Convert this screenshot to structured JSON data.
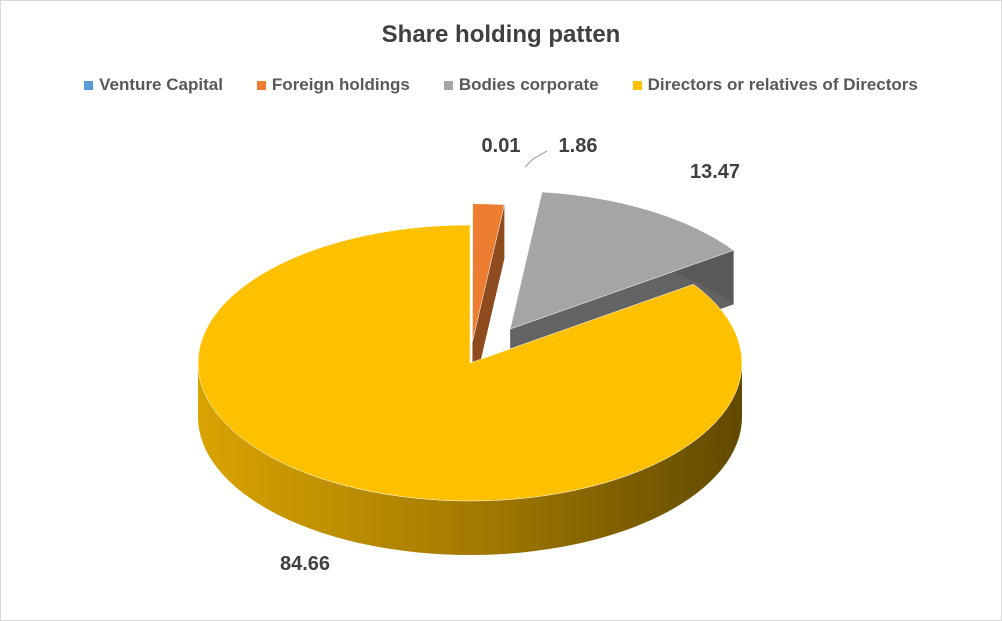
{
  "chart_data": {
    "type": "pie",
    "title": "Share holding patten",
    "categories": [
      "Venture Capital",
      "Foreign holdings",
      "Bodies corporate",
      "Directors or relatives of Directors"
    ],
    "values": [
      0.01,
      1.86,
      13.47,
      84.66
    ],
    "value_labels": [
      "0.01",
      "1.86",
      "13.47",
      "84.66"
    ],
    "colors": [
      "#5b9bd5",
      "#ed7d31",
      "#a5a5a5",
      "#ffc000"
    ],
    "style": "3d-exploded",
    "legend_position": "top"
  }
}
